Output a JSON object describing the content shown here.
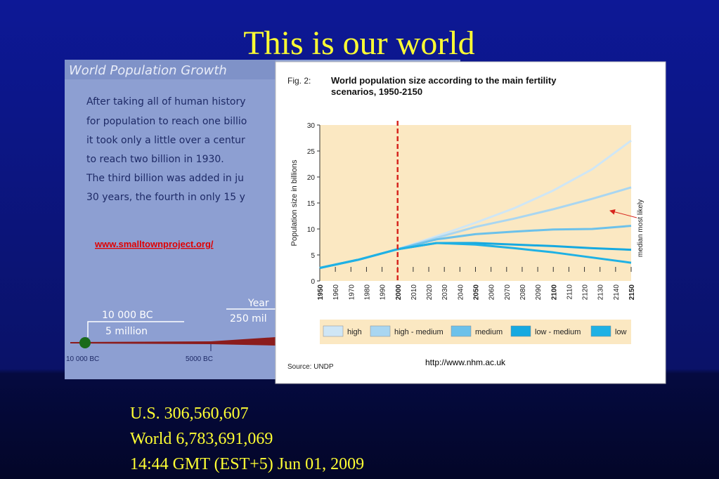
{
  "slide_title": "This is our world",
  "left_image": {
    "heading": "World Population Growth",
    "lines": [
      "After taking all of human history",
      "for population to reach one billio",
      "it took only a little over a centur",
      "to reach two billion in 1930.",
      "The third billion was added in ju",
      "30 years, the fourth in only 15 y"
    ],
    "link": "www.smalltownproject.org/",
    "timeline_labels": [
      "10 000 BC",
      "5 million",
      "Year",
      "250 mil"
    ],
    "axis_labels": [
      "10 000 BC",
      "5000 BC"
    ]
  },
  "chart_data": {
    "type": "line",
    "fig_label": "Fig. 2:",
    "title_lines": [
      "World population size according to the main fertility",
      "scenarios, 1950-2150"
    ],
    "y_label": "Population size in billions",
    "x": [
      1950,
      1975,
      2000,
      2025,
      2050,
      2075,
      2100,
      2125,
      2150
    ],
    "series": [
      {
        "name": "high",
        "color": "#cfe6f5",
        "values": [
          2.5,
          4.1,
          6.1,
          8.6,
          11.2,
          14.0,
          17.4,
          21.5,
          27
        ]
      },
      {
        "name": "high - medium",
        "color": "#a9d6f1",
        "values": [
          2.5,
          4.1,
          6.1,
          8.3,
          10.4,
          12.0,
          13.8,
          15.8,
          18
        ]
      },
      {
        "name": "medium",
        "color": "#6cc1ea",
        "values": [
          2.5,
          4.1,
          6.1,
          8.0,
          9.0,
          9.5,
          9.9,
          10.0,
          10.6
        ]
      },
      {
        "name": "low - medium",
        "color": "#16a9e0",
        "values": [
          2.5,
          4.1,
          6.1,
          7.3,
          7.3,
          7.0,
          6.7,
          6.3,
          6.0
        ]
      },
      {
        "name": "low",
        "color": "#1fb1e4",
        "values": [
          2.5,
          4.1,
          6.1,
          7.3,
          7.0,
          6.3,
          5.5,
          4.5,
          3.5
        ]
      }
    ],
    "xlim": [
      1950,
      2150
    ],
    "xticks": [
      1950,
      1960,
      1970,
      1980,
      1990,
      2000,
      2010,
      2020,
      2030,
      2040,
      2050,
      2060,
      2070,
      2080,
      2090,
      2100,
      2110,
      2120,
      2130,
      2140,
      2150
    ],
    "ylim": [
      0,
      30
    ],
    "yticks": [
      0,
      5,
      10,
      15,
      20,
      25,
      30
    ],
    "marker_line": 2000,
    "marker_color": "#d7261e",
    "annotation": "median most likely",
    "source": "Source: UNDP",
    "url": "http://www.nhm.ac.uk"
  },
  "footer_lines": [
    "U.S. 306,560,607",
    "World 6,783,691,069",
    "14:44 GMT (EST+5) Jun 01, 2009"
  ]
}
